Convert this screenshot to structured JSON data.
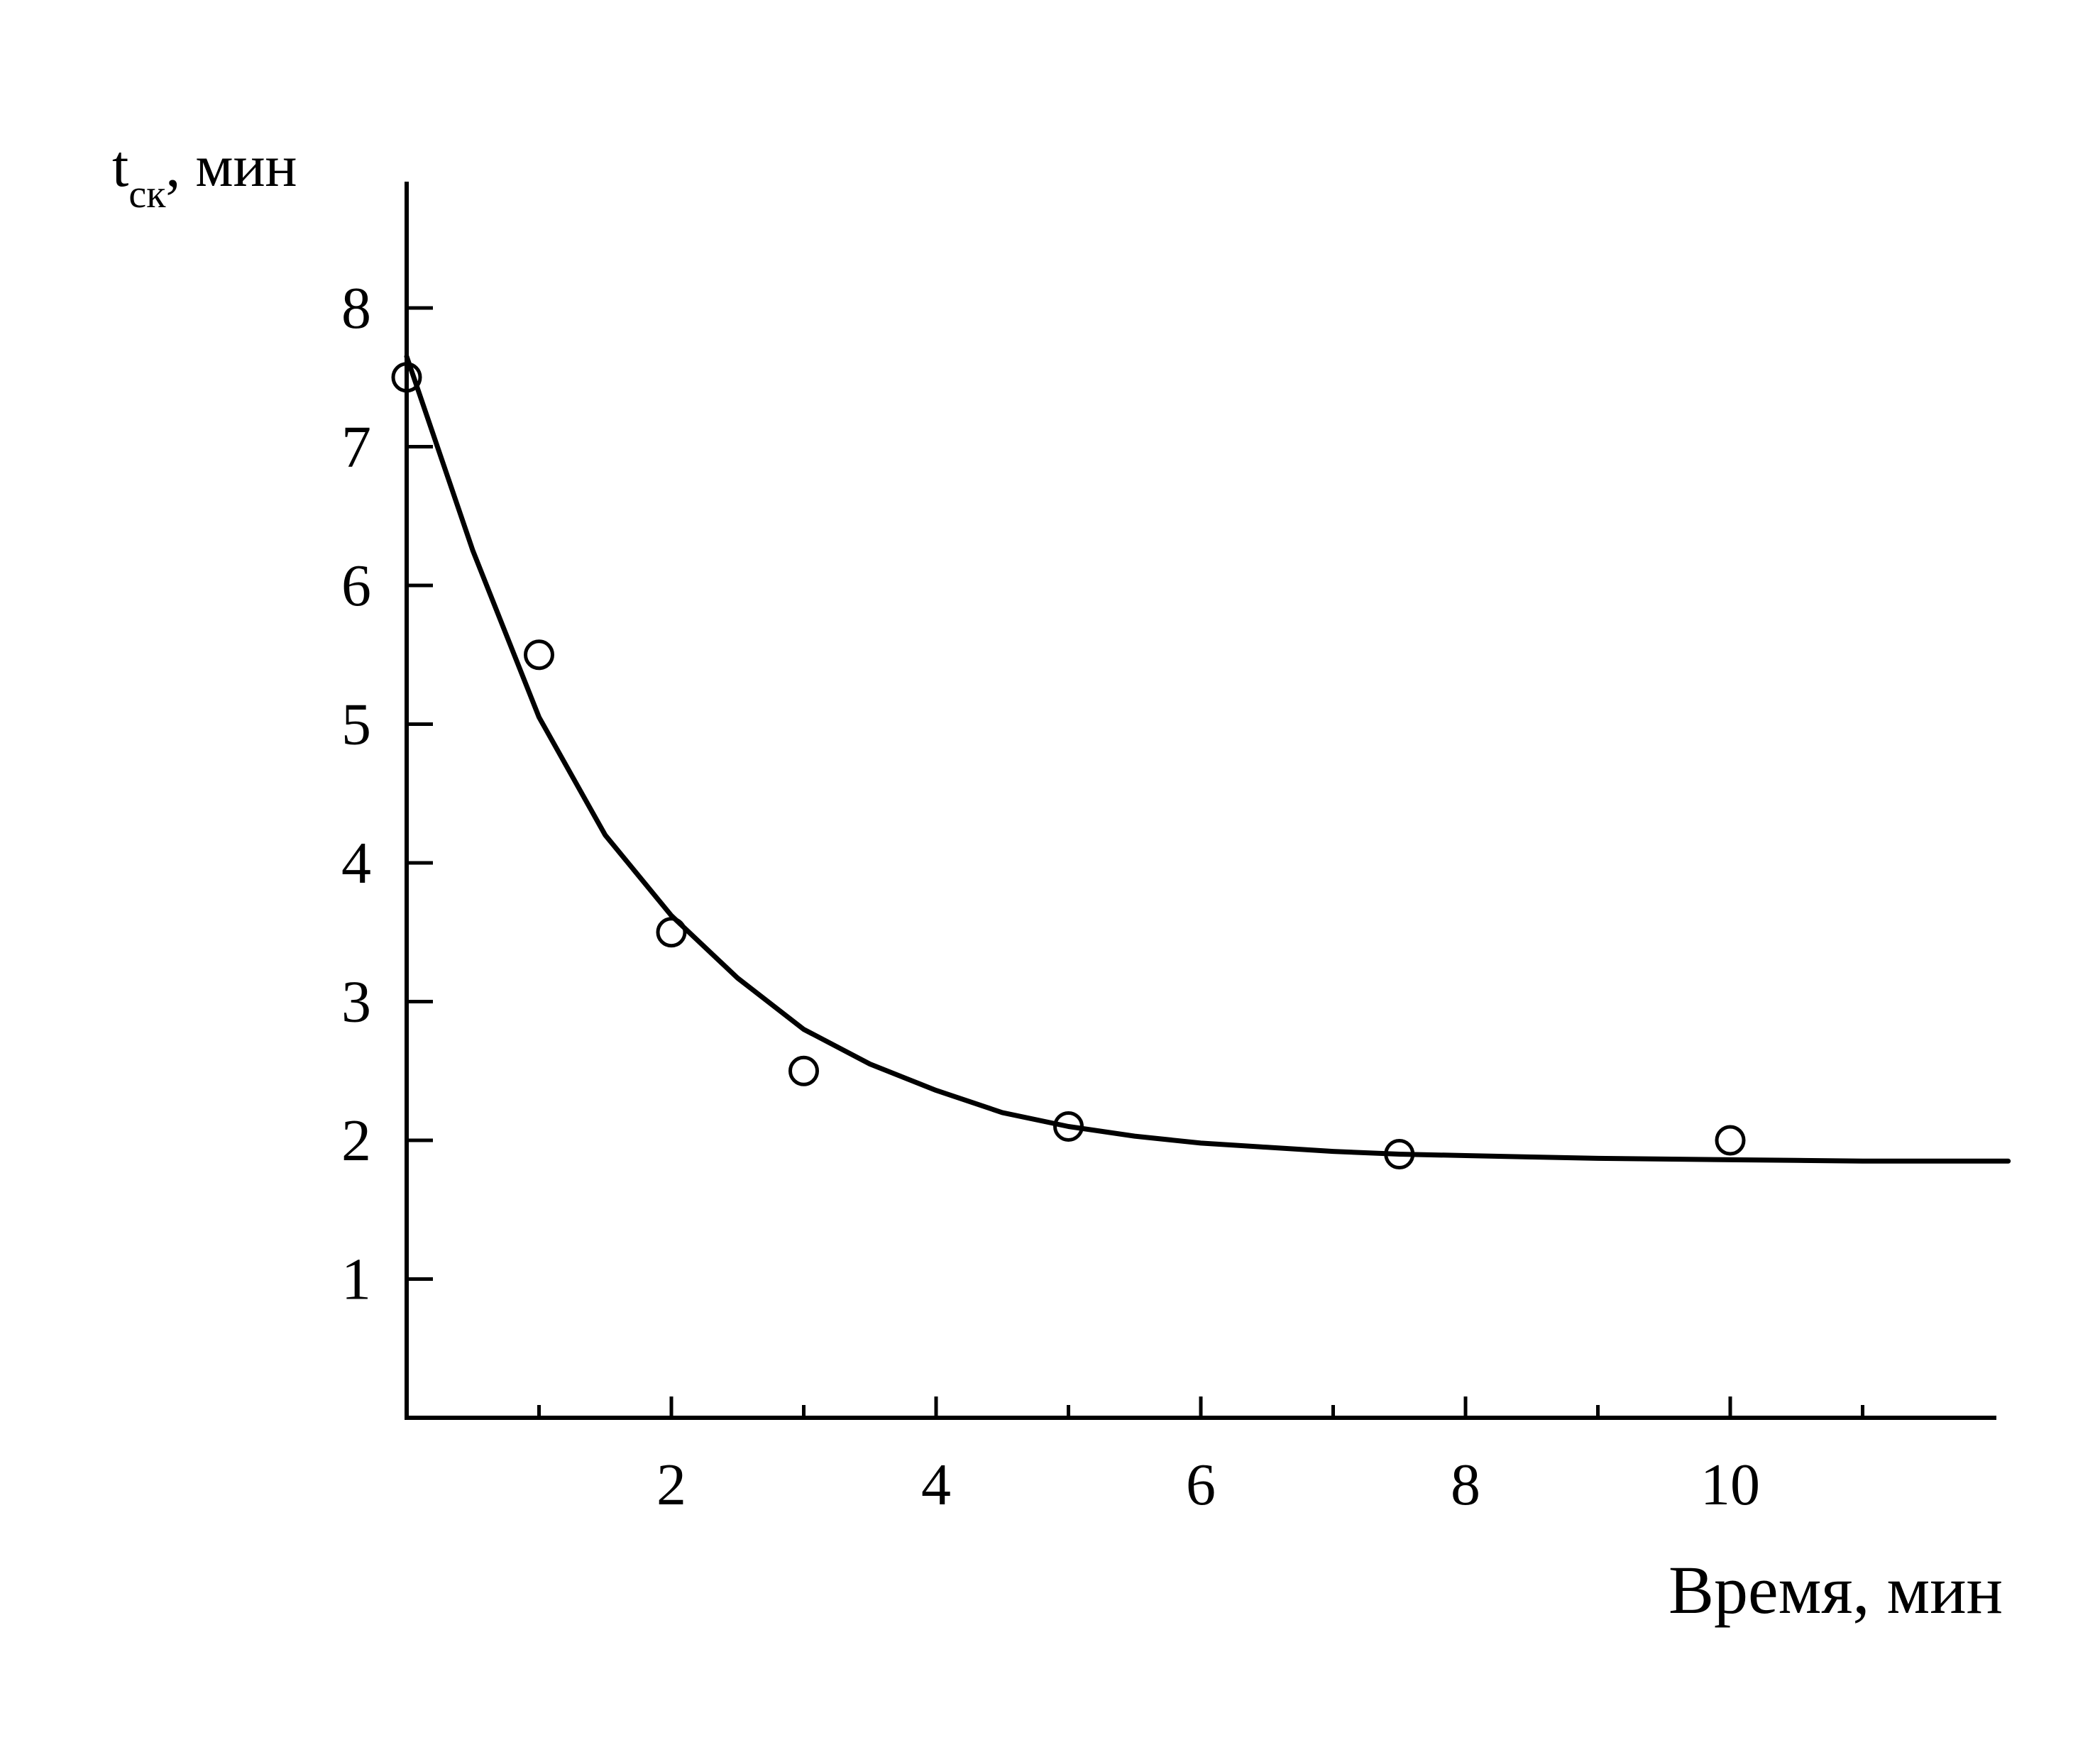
{
  "chart_data": {
    "type": "scatter",
    "title": "",
    "xlabel": "Время, мин",
    "ylabel": {
      "base": "t",
      "subscript": "ск",
      "rest": ", мин"
    },
    "xlim": [
      0,
      12
    ],
    "ylim": [
      0,
      9
    ],
    "x_tick_labels": [
      {
        "value": 2,
        "label": "2"
      },
      {
        "value": 4,
        "label": "4"
      },
      {
        "value": 6,
        "label": "6"
      },
      {
        "value": 8,
        "label": "8"
      },
      {
        "value": 10,
        "label": "10"
      }
    ],
    "x_minor_ticks": [
      1,
      3,
      5,
      7,
      9,
      11
    ],
    "y_tick_labels": [
      {
        "value": 1,
        "label": "1"
      },
      {
        "value": 2,
        "label": "2"
      },
      {
        "value": 3,
        "label": "3"
      },
      {
        "value": 4,
        "label": "4"
      },
      {
        "value": 5,
        "label": "5"
      },
      {
        "value": 6,
        "label": "6"
      },
      {
        "value": 7,
        "label": "7"
      },
      {
        "value": 8,
        "label": "8"
      }
    ],
    "grid": false,
    "legend": "none",
    "series": [
      {
        "kind": "points",
        "marker": "open-circle",
        "x": [
          0,
          1,
          2,
          3,
          5,
          7.5,
          10
        ],
        "y": [
          7.5,
          5.5,
          3.5,
          2.5,
          2.1,
          1.9,
          2.0
        ]
      },
      {
        "kind": "fit-curve",
        "x": [
          0,
          0.5,
          1,
          1.5,
          2,
          2.5,
          3,
          3.5,
          4,
          4.5,
          5,
          5.5,
          6,
          6.5,
          7,
          7.5,
          8,
          8.5,
          9,
          9.5,
          10,
          10.5,
          11,
          11.5,
          12.1
        ],
        "y": [
          7.65,
          6.25,
          5.05,
          4.2,
          3.62,
          3.17,
          2.8,
          2.55,
          2.36,
          2.2,
          2.1,
          2.03,
          1.98,
          1.95,
          1.92,
          1.9,
          1.89,
          1.88,
          1.87,
          1.865,
          1.86,
          1.855,
          1.85,
          1.85,
          1.85
        ]
      }
    ],
    "colors": {
      "ink": "#000000",
      "background": "#ffffff"
    }
  }
}
